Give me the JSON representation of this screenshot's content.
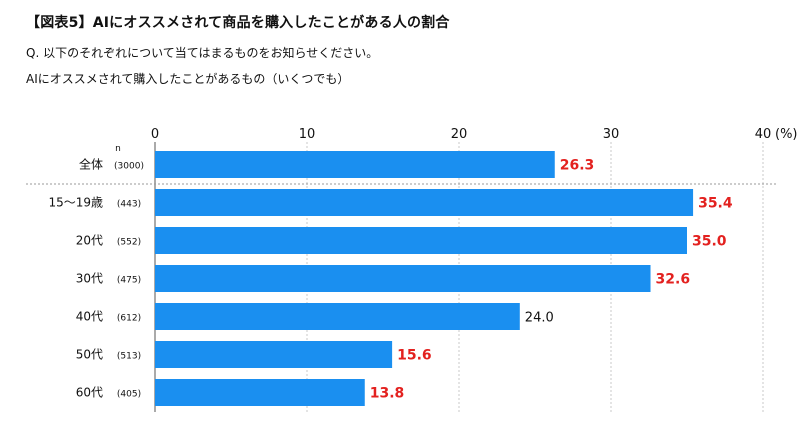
{
  "header": {
    "title": "【図表5】AIにオススメされて商品を購入したことがある人の割合",
    "question": "Q. 以下のそれぞれについて当てはまるものをお知らせください。",
    "item": "AIにオススメされて購入したことがあるもの（いくつでも）"
  },
  "colors": {
    "bar": "#1a8ff0",
    "highlight": "#e3211f",
    "normal": "#111111",
    "grid": "#c8c8c8",
    "separator": "#9a9a9a"
  },
  "chart_data": {
    "type": "bar",
    "orientation": "horizontal",
    "categories": [
      "全体",
      "15～19歳",
      "20代",
      "30代",
      "40代",
      "50代",
      "60代"
    ],
    "n_values": [
      "(3000)",
      "(443)",
      "(552)",
      "(475)",
      "(612)",
      "(513)",
      "(405)"
    ],
    "values": [
      26.3,
      35.4,
      35.0,
      32.6,
      24.0,
      15.6,
      13.8
    ],
    "highlighted": [
      true,
      true,
      true,
      true,
      false,
      true,
      true
    ],
    "xlim": [
      0,
      40
    ],
    "xticks": [
      0,
      10,
      20,
      30,
      40
    ],
    "unit_label": "(%)",
    "n_header": "n",
    "grid": true,
    "legend": "none"
  }
}
